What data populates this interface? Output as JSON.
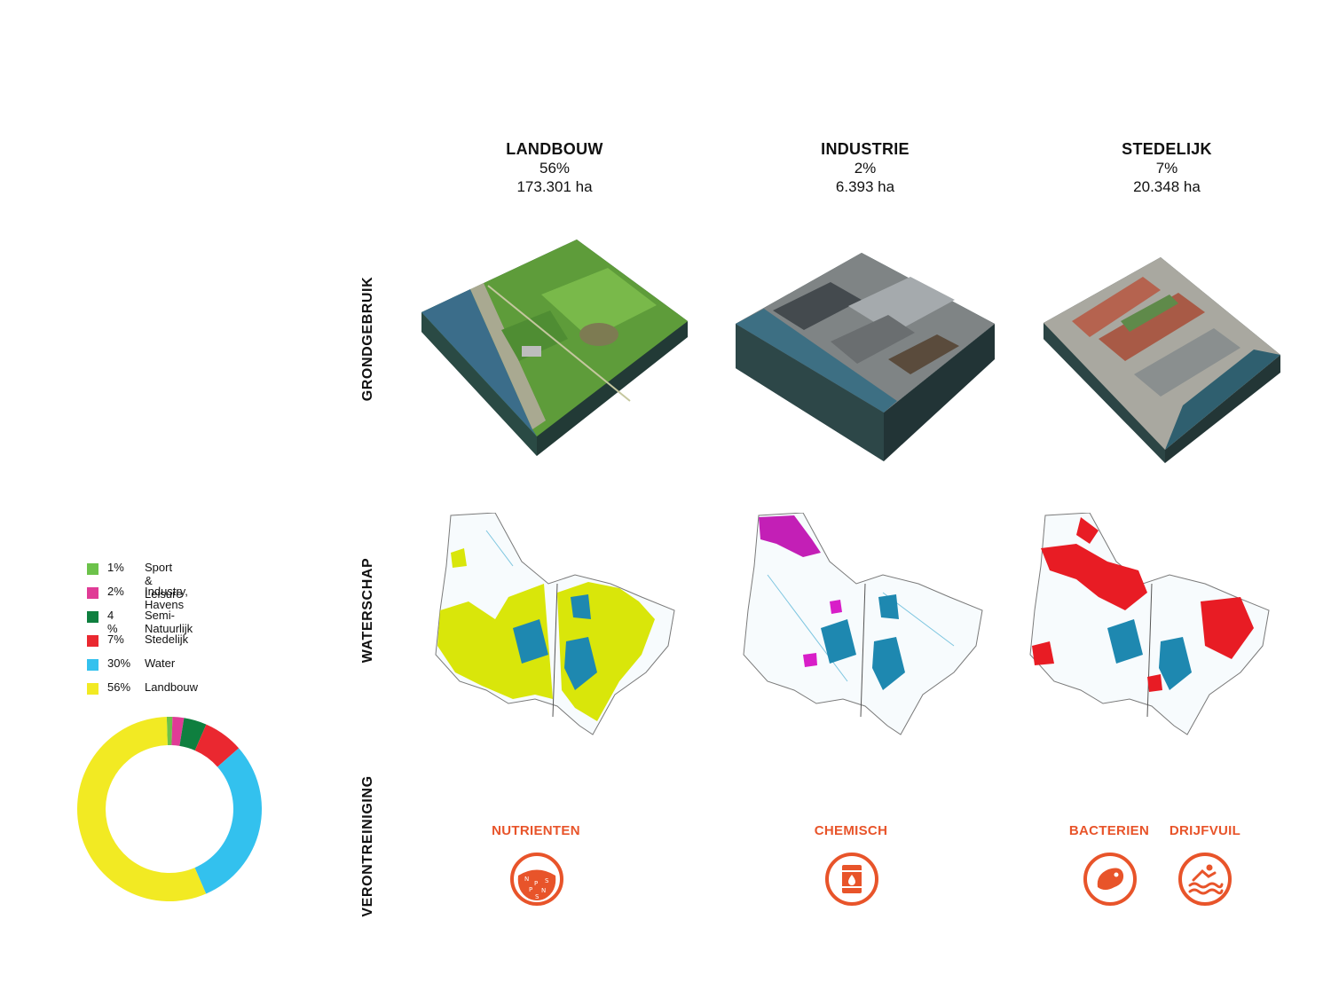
{
  "columns": [
    {
      "title": "LANDBOUW",
      "percent": "56%",
      "area": "173.301 ha"
    },
    {
      "title": "INDUSTRIE",
      "percent": "2%",
      "area": "6.393 ha"
    },
    {
      "title": "STEDELIJK",
      "percent": "7%",
      "area": "20.348 ha"
    }
  ],
  "rows": {
    "grondgebruik": "GRONDGEBRUIK",
    "waterschap": "WATERSCHAP",
    "verontreiniging": "VERONTREINIGING"
  },
  "legend": [
    {
      "pct": "1%",
      "label": "Sport & Leisure",
      "color": "#6cc24a"
    },
    {
      "pct": "2%",
      "label": "Industry, Havens",
      "color": "#e03b96"
    },
    {
      "pct": "4 %",
      "label": "Semi-Natuurlijk",
      "color": "#0f7f3f"
    },
    {
      "pct": "7%",
      "label": "Stedelijk",
      "color": "#ea2830"
    },
    {
      "pct": "30%",
      "label": "Water",
      "color": "#33c1ee"
    },
    {
      "pct": "56%",
      "label": "Landbouw",
      "color": "#f2ea23"
    }
  ],
  "chart_data": {
    "type": "pie",
    "categories": [
      "Sport & Leisure",
      "Industry, Havens",
      "Semi-Natuurlijk",
      "Stedelijk",
      "Water",
      "Landbouw"
    ],
    "values": [
      1,
      2,
      4,
      7,
      30,
      56
    ],
    "colors": [
      "#6cc24a",
      "#e03b96",
      "#0f7f3f",
      "#ea2830",
      "#33c1ee",
      "#f2ea23"
    ]
  },
  "pollution": [
    {
      "label": "NUTRIENTEN",
      "icon": "nutrients-icon",
      "icon_letters": [
        "N",
        "P",
        "S",
        "N",
        "P",
        "S"
      ]
    },
    {
      "label": "CHEMISCH",
      "icon": "chemical-barrel-icon"
    },
    {
      "label": "BACTERIEN",
      "icon": "bacteria-icon"
    },
    {
      "label": "DRIJFVUIL",
      "icon": "floating-waste-icon"
    }
  ],
  "colors": {
    "accent": "#e8542a",
    "map_water": "#1e88b0",
    "map_lines": "#7ec6e0"
  }
}
